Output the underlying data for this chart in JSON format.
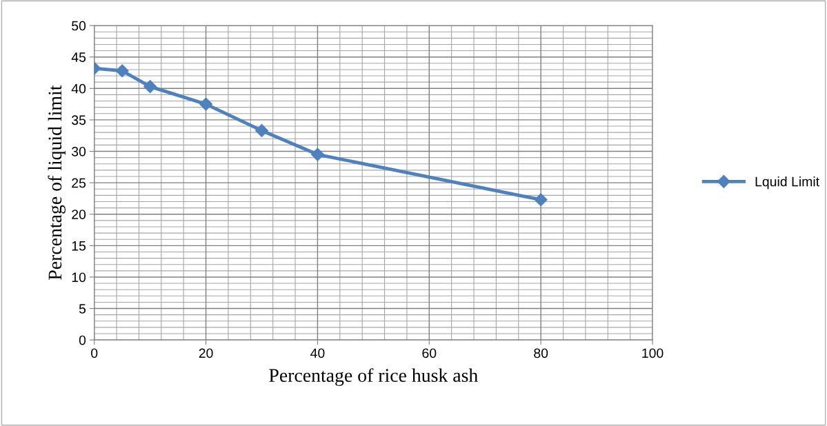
{
  "chart_data": {
    "type": "line",
    "xlabel": "Percentage of rice husk ash",
    "ylabel": "Percentage of liquid limit",
    "x": [
      0,
      5,
      10,
      20,
      30,
      40,
      80
    ],
    "series": [
      {
        "name": "Lquid Limit",
        "color": "#4f81bd",
        "values": [
          43.2,
          42.8,
          40.3,
          37.5,
          33.3,
          29.5,
          22.3
        ]
      }
    ],
    "xlim": [
      0,
      100
    ],
    "xticks": [
      0,
      20,
      40,
      60,
      80,
      100
    ],
    "ylim": [
      0,
      50
    ],
    "yticks": [
      0,
      5,
      10,
      15,
      20,
      25,
      30,
      35,
      40,
      45,
      50
    ],
    "grid": true,
    "legend": "right",
    "marker": "diamond",
    "line_style": "solid"
  }
}
